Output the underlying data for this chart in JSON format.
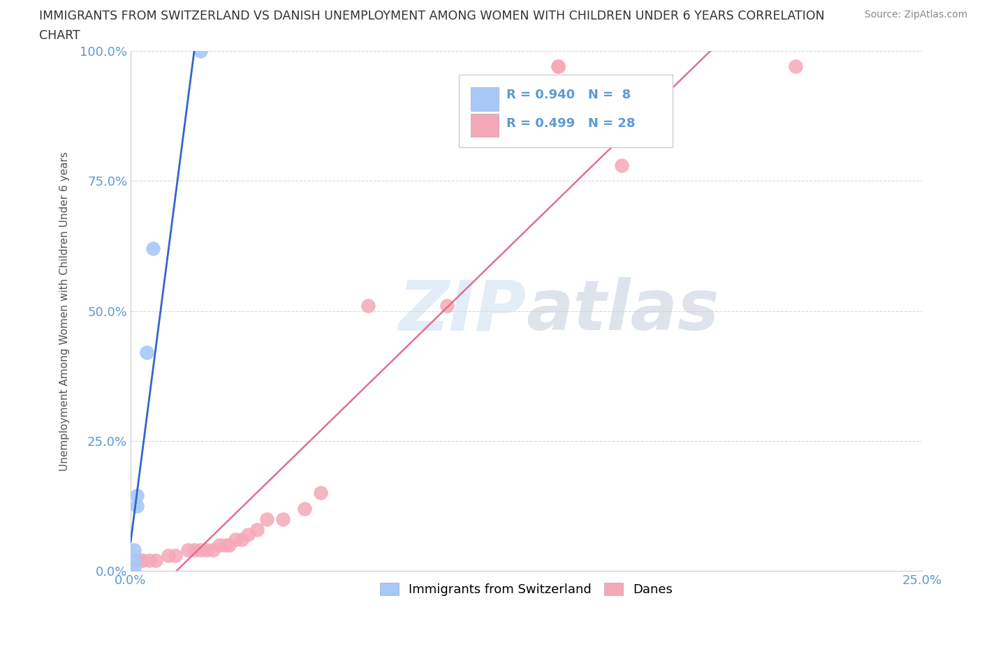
{
  "title_line1": "IMMIGRANTS FROM SWITZERLAND VS DANISH UNEMPLOYMENT AMONG WOMEN WITH CHILDREN UNDER 6 YEARS CORRELATION",
  "title_line2": "CHART",
  "source": "Source: ZipAtlas.com",
  "ylabel": "Unemployment Among Women with Children Under 6 years",
  "xlim": [
    0.0,
    0.25
  ],
  "ylim": [
    0.0,
    1.0
  ],
  "yticks": [
    0.0,
    0.25,
    0.5,
    0.75,
    1.0
  ],
  "ytick_labels": [
    "0.0%",
    "25.0%",
    "50.0%",
    "75.0%",
    "100.0%"
  ],
  "xticks": [
    0.0,
    0.25
  ],
  "xtick_labels": [
    "0.0%",
    "25.0%"
  ],
  "blue_scatter_x": [
    0.022,
    0.007,
    0.005,
    0.002,
    0.002,
    0.001,
    0.001,
    0.001
  ],
  "blue_scatter_y": [
    1.0,
    0.62,
    0.42,
    0.145,
    0.125,
    0.04,
    0.02,
    0.005
  ],
  "pink_scatter_x": [
    0.135,
    0.135,
    0.21,
    0.155,
    0.1,
    0.075,
    0.06,
    0.055,
    0.048,
    0.043,
    0.04,
    0.037,
    0.035,
    0.033,
    0.031,
    0.03,
    0.028,
    0.026,
    0.024,
    0.022,
    0.02,
    0.018,
    0.014,
    0.012,
    0.008,
    0.006,
    0.004,
    0.003
  ],
  "pink_scatter_y": [
    0.97,
    0.97,
    0.97,
    0.78,
    0.51,
    0.51,
    0.15,
    0.12,
    0.1,
    0.1,
    0.08,
    0.07,
    0.06,
    0.06,
    0.05,
    0.05,
    0.05,
    0.04,
    0.04,
    0.04,
    0.04,
    0.04,
    0.03,
    0.03,
    0.02,
    0.02,
    0.02,
    0.02
  ],
  "blue_R": 0.94,
  "blue_N": 8,
  "pink_R": 0.499,
  "pink_N": 28,
  "blue_color": "#a8c8f8",
  "pink_color": "#f5a8b8",
  "blue_line_color": "#3366cc",
  "pink_line_color": "#e07090",
  "watermark_zip": "ZIP",
  "watermark_atlas": "atlas",
  "background_color": "#ffffff",
  "grid_color": "#d8d8d8",
  "tick_color": "#5b9bd5",
  "legend_label_blue": "Immigrants from Switzerland",
  "legend_label_pink": "Danes"
}
